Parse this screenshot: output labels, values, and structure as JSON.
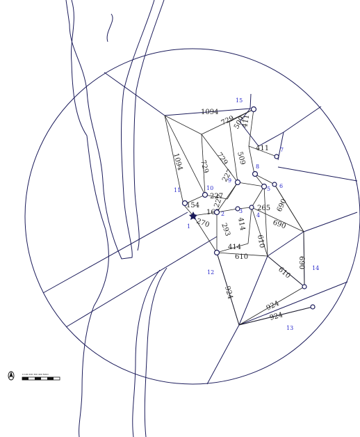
{
  "sites": [
    {
      "id": "1",
      "label": "1"
    },
    {
      "id": "2",
      "label": "2"
    },
    {
      "id": "3",
      "label": "3"
    },
    {
      "id": "4",
      "label": "4"
    },
    {
      "id": "5",
      "label": "5"
    },
    {
      "id": "6",
      "label": "6"
    },
    {
      "id": "7",
      "label": "7"
    },
    {
      "id": "8",
      "label": "8"
    },
    {
      "id": "9",
      "label": "9"
    },
    {
      "id": "10",
      "label": "10"
    },
    {
      "id": "11",
      "label": "11"
    },
    {
      "id": "12",
      "label": "12"
    },
    {
      "id": "13",
      "label": "13"
    },
    {
      "id": "14",
      "label": "14"
    },
    {
      "id": "15",
      "label": "15"
    }
  ],
  "distance_labels": [
    "1094",
    "729",
    "509",
    "411",
    "411",
    "1094",
    "729",
    "729",
    "509",
    "227",
    "227",
    "154",
    "270",
    "167",
    "227",
    "293",
    "414",
    "265",
    "690",
    "690",
    "610",
    "610",
    "414",
    "610",
    "690",
    "924",
    "924",
    "924"
  ],
  "scale_bar": {
    "label": "0 100 200 300 400 500m"
  },
  "north_arrow": {
    "icon": "north-arrow-icon"
  }
}
